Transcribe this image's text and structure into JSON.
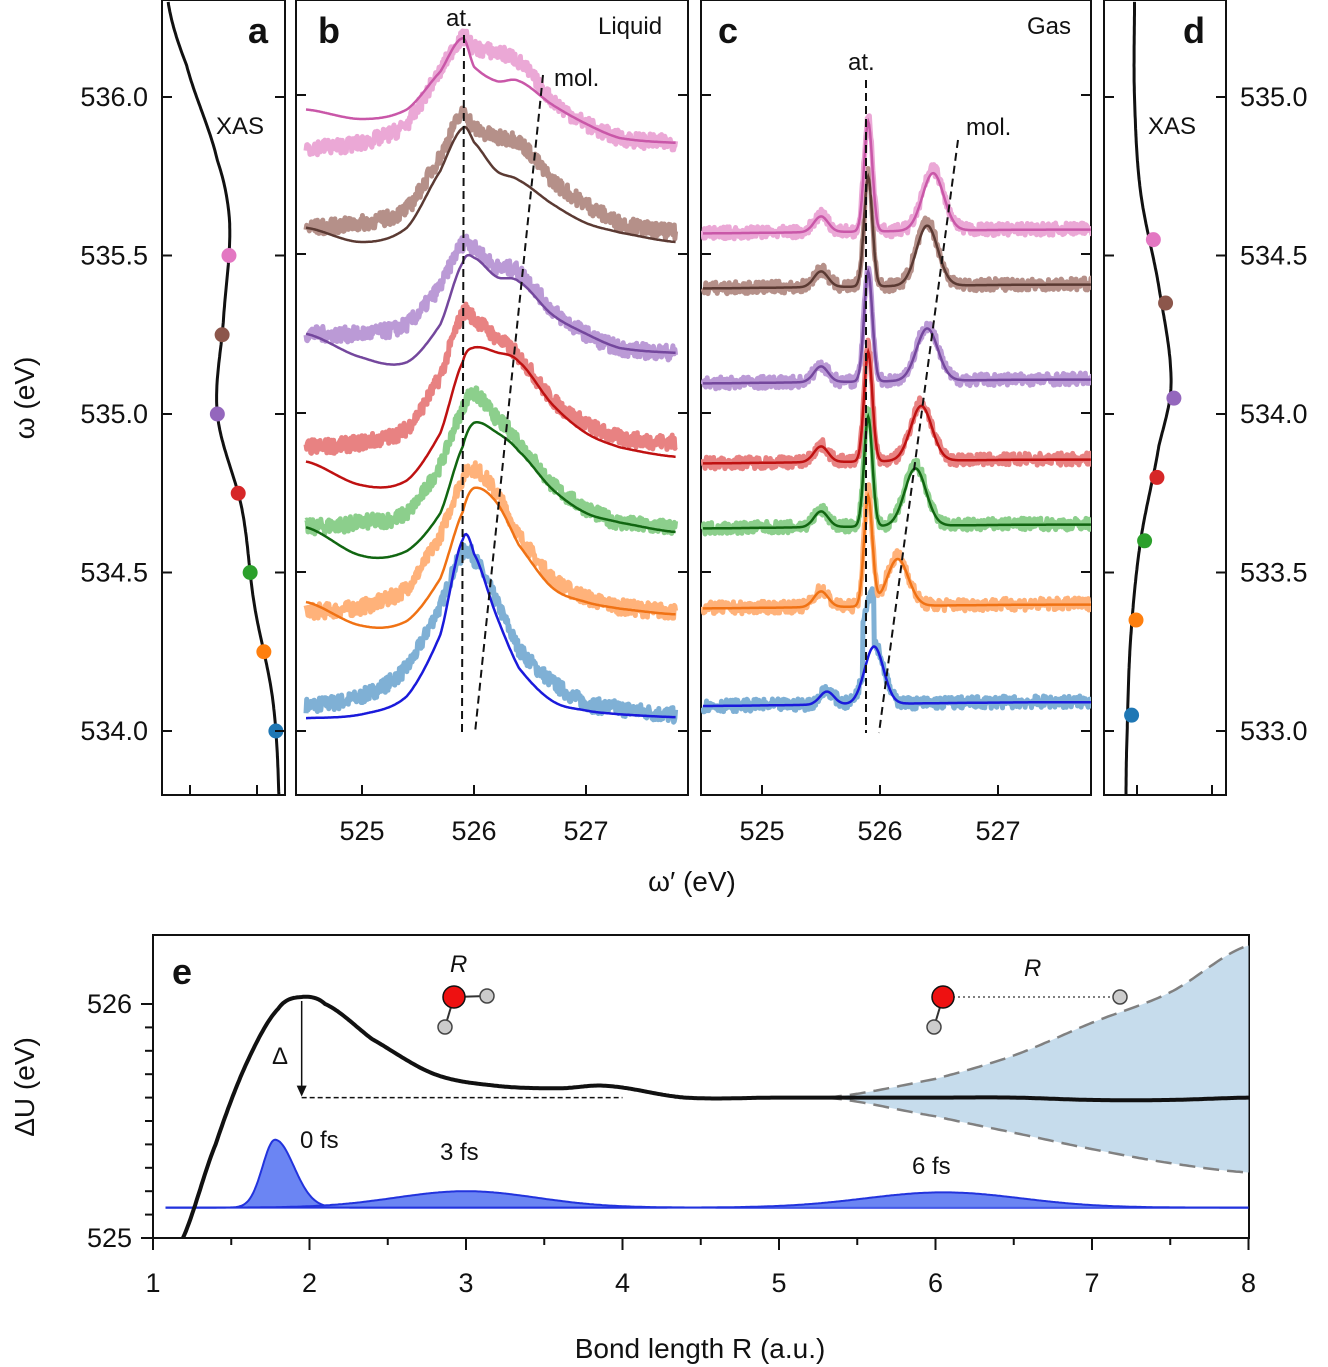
{
  "chart_data": [
    {
      "panel": "a",
      "type": "line",
      "title": "XAS",
      "ylabel": "ω (eV)",
      "ylim": [
        533.8,
        536.3
      ],
      "yticks": [
        534.0,
        534.5,
        535.0,
        535.5,
        536.0
      ],
      "ytick_labels": [
        "534.0",
        "534.5",
        "535.0",
        "535.5",
        "536.0"
      ],
      "series": [
        {
          "name": "XAS",
          "points": [
            [
              0.95,
              533.8
            ],
            [
              0.9,
              534.1
            ],
            [
              0.75,
              534.4
            ],
            [
              0.65,
              534.7
            ],
            [
              0.45,
              535.0
            ],
            [
              0.5,
              535.3
            ],
            [
              0.55,
              535.6
            ],
            [
              0.45,
              535.8
            ],
            [
              0.2,
              536.1
            ],
            [
              0.05,
              536.3
            ]
          ]
        }
      ],
      "markers": [
        {
          "w": 535.5,
          "x": 0.5,
          "color": "#e377c2"
        },
        {
          "w": 535.25,
          "x": 0.46,
          "color": "#8c564b"
        },
        {
          "w": 535.0,
          "x": 0.44,
          "color": "#9467bd"
        },
        {
          "w": 534.75,
          "x": 0.5,
          "color": "#d62728"
        },
        {
          "w": 534.5,
          "x": 0.6,
          "color": "#2ca02c"
        },
        {
          "w": 534.25,
          "x": 0.8,
          "color": "#ff7f0e"
        },
        {
          "w": 534.0,
          "x": 0.9,
          "color": "#1f77b4"
        }
      ]
    },
    {
      "panel": "b",
      "type": "line",
      "title": "Liquid",
      "xlabel": "ω′ (eV)",
      "xlim": [
        524.5,
        527.8
      ],
      "xticks": [
        525,
        526,
        527
      ],
      "xtick_labels": [
        "525",
        "526",
        "527"
      ],
      "annotations": [
        "at.",
        "mol."
      ],
      "series": [
        {
          "name": "534.0",
          "exp_color": "#7fb0d5",
          "th_color": "#1a1adb",
          "offset": 0,
          "x": [
            524.5,
            525.0,
            525.4,
            525.7,
            525.9,
            526.0,
            526.2,
            526.4,
            526.7,
            527.0,
            527.3,
            527.8
          ],
          "exp": [
            0.15,
            0.25,
            0.55,
            1.2,
            1.75,
            1.7,
            1.25,
            0.75,
            0.4,
            0.18,
            0.12,
            0.05
          ],
          "th": [
            0.02,
            0.06,
            0.25,
            0.9,
            1.9,
            1.75,
            1.1,
            0.55,
            0.2,
            0.1,
            0.06,
            0.03
          ]
        },
        {
          "name": "534.25",
          "exp_color": "#ffb27a",
          "th_color": "#f07214",
          "offset": 1,
          "x": [
            524.5,
            525.0,
            525.4,
            525.7,
            525.9,
            526.0,
            526.2,
            526.4,
            526.7,
            527.0,
            527.3,
            527.8
          ],
          "exp": [
            0.3,
            0.35,
            0.55,
            1.1,
            1.7,
            1.8,
            1.55,
            1.1,
            0.65,
            0.45,
            0.35,
            0.3
          ],
          "th": [
            0.4,
            0.15,
            0.2,
            0.65,
            1.35,
            1.6,
            1.45,
            1.0,
            0.55,
            0.4,
            0.33,
            0.27
          ]
        },
        {
          "name": "534.5",
          "exp_color": "#8ccf8c",
          "th_color": "#116611",
          "offset": 2,
          "x": [
            524.5,
            525.0,
            525.4,
            525.7,
            525.9,
            526.0,
            526.2,
            526.4,
            526.7,
            527.0,
            527.3,
            527.8
          ],
          "exp": [
            0.45,
            0.5,
            0.6,
            1.1,
            1.7,
            1.85,
            1.6,
            1.35,
            0.9,
            0.65,
            0.5,
            0.45
          ],
          "th": [
            0.45,
            0.15,
            0.2,
            0.6,
            1.3,
            1.55,
            1.45,
            1.25,
            0.85,
            0.6,
            0.5,
            0.4
          ]
        },
        {
          "name": "534.75",
          "exp_color": "#e88282",
          "th_color": "#bf1111",
          "offset": 3,
          "x": [
            524.5,
            525.0,
            525.4,
            525.7,
            525.9,
            526.0,
            526.2,
            526.4,
            526.7,
            527.0,
            527.3,
            527.8
          ],
          "exp": [
            0.45,
            0.5,
            0.65,
            1.2,
            1.85,
            1.8,
            1.6,
            1.4,
            0.95,
            0.7,
            0.55,
            0.5
          ],
          "th": [
            0.3,
            0.05,
            0.1,
            0.6,
            1.35,
            1.5,
            1.45,
            1.35,
            0.9,
            0.6,
            0.45,
            0.35
          ]
        },
        {
          "name": "535.0",
          "exp_color": "#bb9ad6",
          "th_color": "#74479d",
          "offset": 4,
          "x": [
            524.5,
            525.0,
            525.4,
            525.7,
            525.9,
            526.0,
            526.2,
            526.4,
            526.7,
            527.0,
            527.3,
            527.8
          ],
          "exp": [
            0.75,
            0.75,
            0.85,
            1.25,
            1.7,
            1.65,
            1.45,
            1.4,
            1.0,
            0.75,
            0.6,
            0.55
          ],
          "th": [
            0.75,
            0.5,
            0.45,
            0.85,
            1.5,
            1.55,
            1.35,
            1.3,
            0.95,
            0.75,
            0.6,
            0.55
          ]
        },
        {
          "name": "535.25",
          "exp_color": "#b59089",
          "th_color": "#5b3a33",
          "offset": 5,
          "x": [
            524.5,
            525.0,
            525.4,
            525.7,
            525.9,
            526.0,
            526.2,
            526.4,
            526.7,
            527.0,
            527.3,
            527.8
          ],
          "exp": [
            0.55,
            0.6,
            0.75,
            1.3,
            1.75,
            1.6,
            1.5,
            1.45,
            1.05,
            0.8,
            0.6,
            0.5
          ],
          "th": [
            0.55,
            0.4,
            0.55,
            1.15,
            1.6,
            1.45,
            1.15,
            1.05,
            0.8,
            0.6,
            0.5,
            0.4
          ]
        },
        {
          "name": "535.5",
          "exp_color": "#eba8d6",
          "th_color": "#c957a8",
          "offset": 6,
          "x": [
            524.5,
            525.0,
            525.4,
            525.7,
            525.9,
            526.0,
            526.2,
            526.4,
            526.7,
            527.0,
            527.3,
            527.8
          ],
          "exp": [
            0.5,
            0.55,
            0.75,
            1.3,
            1.65,
            1.55,
            1.5,
            1.4,
            1.0,
            0.75,
            0.6,
            0.55
          ],
          "th": [
            0.9,
            0.8,
            0.9,
            1.3,
            1.65,
            1.35,
            1.2,
            1.2,
            0.95,
            0.75,
            0.6,
            0.55
          ]
        }
      ]
    },
    {
      "panel": "c",
      "type": "line",
      "title": "Gas",
      "xlabel": "ω′ (eV)",
      "xlim": [
        524.5,
        527.8
      ],
      "xticks": [
        525,
        526,
        527
      ],
      "xtick_labels": [
        "525",
        "526",
        "527"
      ],
      "annotations": [
        "at.",
        "mol."
      ],
      "series": [
        {
          "name": "533.0",
          "exp_color": "#7fb0d5",
          "th_color": "#1a1adb",
          "offset": 0
        },
        {
          "name": "533.35",
          "exp_color": "#ffb27a",
          "th_color": "#f07214",
          "offset": 1
        },
        {
          "name": "533.6",
          "exp_color": "#8ccf8c",
          "th_color": "#116611",
          "offset": 2
        },
        {
          "name": "533.8",
          "exp_color": "#e88282",
          "th_color": "#bf1111",
          "offset": 3
        },
        {
          "name": "534.05",
          "exp_color": "#bb9ad6",
          "th_color": "#74479d",
          "offset": 4
        },
        {
          "name": "534.35",
          "exp_color": "#b59089",
          "th_color": "#5b3a33",
          "offset": 5
        },
        {
          "name": "534.55",
          "exp_color": "#eba8d6",
          "th_color": "#c957a8",
          "offset": 6
        }
      ]
    },
    {
      "panel": "d",
      "type": "line",
      "title": "XAS",
      "ylim": [
        532.8,
        535.3
      ],
      "yticks": [
        533.0,
        533.5,
        534.0,
        534.5,
        535.0
      ],
      "ytick_labels": [
        "533.0",
        "533.5",
        "534.0",
        "534.5",
        "535.0"
      ],
      "markers": [
        {
          "w": 534.55,
          "color": "#e377c2"
        },
        {
          "w": 534.35,
          "color": "#8c564b"
        },
        {
          "w": 534.05,
          "color": "#9467bd"
        },
        {
          "w": 533.8,
          "color": "#d62728"
        },
        {
          "w": 533.6,
          "color": "#2ca02c"
        },
        {
          "w": 533.35,
          "color": "#ff7f0e"
        },
        {
          "w": 533.05,
          "color": "#1f77b4"
        }
      ]
    },
    {
      "panel": "e",
      "type": "line",
      "xlabel": "Bond length R (a.u.)",
      "ylabel": "ΔU (eV)",
      "xlim": [
        1,
        8
      ],
      "ylim": [
        525,
        526.25
      ],
      "xticks": [
        1,
        2,
        3,
        4,
        5,
        6,
        7,
        8
      ],
      "xtick_labels": [
        "1",
        "2",
        "3",
        "4",
        "5",
        "6",
        "7",
        "8"
      ],
      "yticks": [
        525,
        526
      ],
      "ytick_labels": [
        "525",
        "526"
      ],
      "potential": {
        "x": [
          1.15,
          1.4,
          1.6,
          1.8,
          1.95,
          2.1,
          2.4,
          2.8,
          3.2,
          3.6,
          3.9,
          4.4,
          5.0,
          5.5,
          6.0,
          6.5,
          7.0,
          7.5,
          8.0
        ],
        "y": [
          524.95,
          525.4,
          525.75,
          525.98,
          526.03,
          526.0,
          525.85,
          525.7,
          525.65,
          525.64,
          525.65,
          525.6,
          525.6,
          525.6,
          525.6,
          525.6,
          525.59,
          525.59,
          525.6
        ]
      },
      "uncertainty_band": {
        "x": [
          5.3,
          6.0,
          6.5,
          7.0,
          7.5,
          8.0
        ],
        "upper": [
          525.6,
          525.68,
          525.78,
          525.92,
          526.05,
          526.25
        ],
        "lower": [
          525.6,
          525.52,
          525.45,
          525.38,
          525.32,
          525.28
        ]
      },
      "delta_level": 525.6,
      "wavepackets": [
        {
          "label": "0 fs",
          "center": 1.78,
          "width": 0.1,
          "height": 0.29
        },
        {
          "label": "3 fs",
          "center": 3.0,
          "width": 0.45,
          "height": 0.07
        },
        {
          "label": "6 fs",
          "center": 6.05,
          "width": 0.5,
          "height": 0.065
        }
      ],
      "annotations": [
        "Δ",
        "R",
        "R"
      ]
    }
  ],
  "labels": {
    "a": "a",
    "b": "b",
    "c": "c",
    "d": "d",
    "e": "e",
    "xas_a": "XAS",
    "xas_d": "XAS",
    "liquid": "Liquid",
    "gas": "Gas",
    "at_b": "at.",
    "mol_b": "mol.",
    "at_c": "at.",
    "mol_c": "mol.",
    "delta": "Δ",
    "R1": "R",
    "R2": "R",
    "fs0": "0 fs",
    "fs3": "3 fs",
    "fs6": "6 fs",
    "omega_y": "ω (eV)",
    "omega_x": "ω′ (eV)",
    "deltaU": "ΔU (eV)",
    "bond_length": "Bond length R (a.u.)"
  },
  "colors": {
    "wavepacket_fill": "#5b78f2",
    "wavepacket_line": "#2233dd",
    "band_fill": "#c6dcec",
    "band_edge": "#808080",
    "oxygen": "#ee1111",
    "hydrogen": "#cccccc"
  }
}
